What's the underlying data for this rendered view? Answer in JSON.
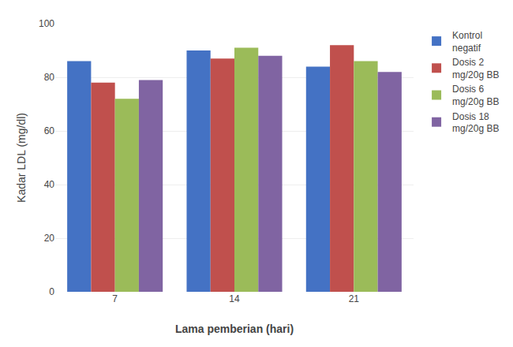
{
  "chart_data": {
    "type": "bar",
    "xlabel": "Lama pemberian (hari)",
    "ylabel": "Kadar LDL (mg/dl)",
    "categories": [
      "7",
      "14",
      "21"
    ],
    "series": [
      {
        "name": "Kontrol\nnegatif",
        "color": "#4472C4",
        "values": [
          86,
          90,
          84
        ]
      },
      {
        "name": "Dosis 2\nmg/20g BB",
        "color": "#C0504D",
        "values": [
          78,
          87,
          92
        ]
      },
      {
        "name": "Dosis 6\nmg/20g BB",
        "color": "#9BBB59",
        "values": [
          72,
          91,
          86
        ]
      },
      {
        "name": "Dosis 18\nmg/20g BB",
        "color": "#8064A2",
        "values": [
          79,
          88,
          82
        ]
      }
    ],
    "ylim": [
      0,
      100
    ],
    "yticks": [
      0,
      20,
      40,
      60,
      80,
      100
    ],
    "grid": true,
    "legend": "upper right"
  }
}
